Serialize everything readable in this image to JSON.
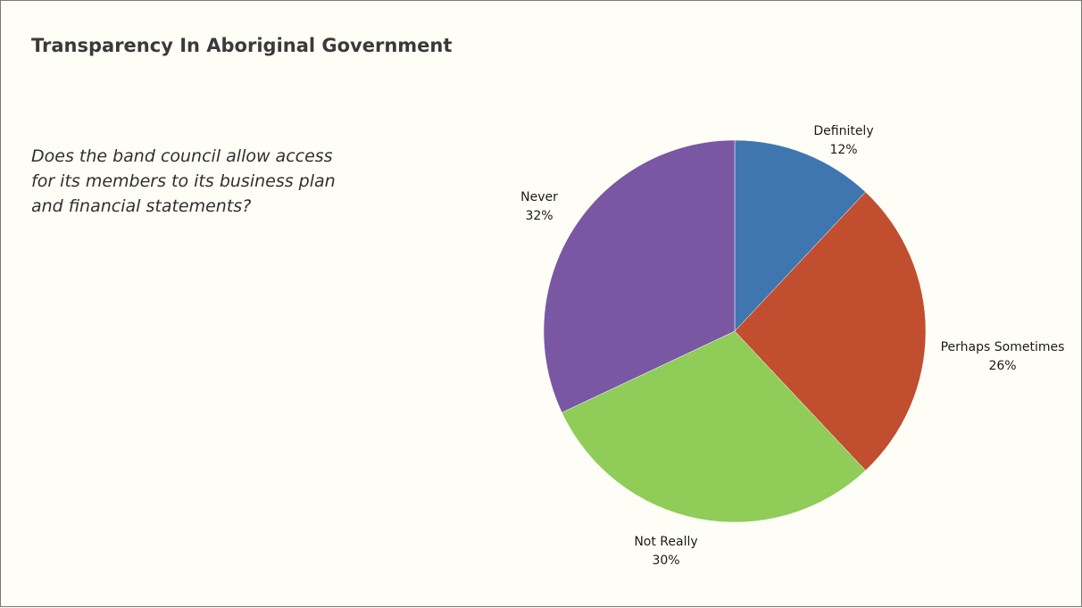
{
  "slide": {
    "title": "Transparency In Aboriginal Government",
    "question_lines": [
      "Does the band  council allow access",
      "for its members to its business plan",
      "and financial statements?"
    ]
  },
  "chart_data": {
    "type": "pie",
    "categories": [
      "Definitely",
      "Perhaps Sometimes",
      "Not Really",
      "Never"
    ],
    "values": [
      12,
      26,
      30,
      32
    ],
    "value_labels": [
      "12%",
      "26%",
      "30%",
      "32%"
    ],
    "colors": [
      "#3f76b0",
      "#c14e2e",
      "#8fcc58",
      "#7a57a3"
    ],
    "start": "12 o'clock",
    "direction": "clockwise",
    "legend": "none",
    "data_labels": "outside, category name and percentage"
  }
}
